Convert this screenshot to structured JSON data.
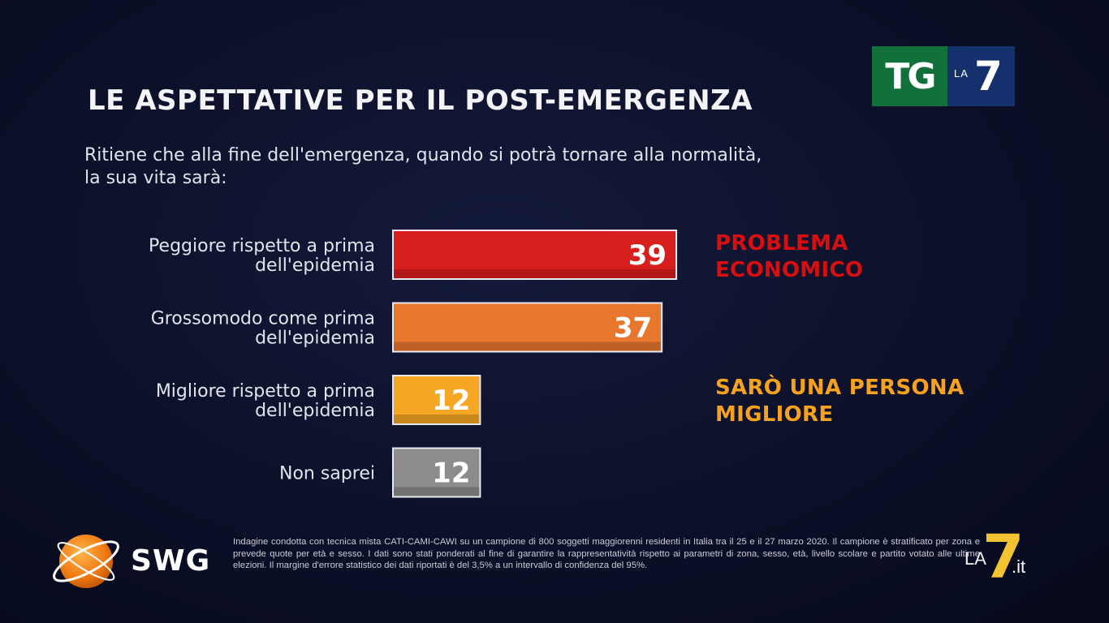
{
  "title": "LE ASPETTATIVE PER IL POST-EMERGENZA",
  "question": {
    "line1": "Ritiene che alla fine dell'emergenza, quando si potrà tornare alla normalità,",
    "line2": "la sua vita sarà:"
  },
  "chart_data": {
    "type": "bar",
    "orientation": "horizontal",
    "categories": [
      [
        "Peggiore rispetto a prima",
        "dell'epidemia"
      ],
      [
        "Grossomodo come prima",
        "dell'epidemia"
      ],
      [
        "Migliore rispetto a prima",
        "dell'epidemia"
      ],
      [
        "Non saprei"
      ]
    ],
    "values": [
      39,
      37,
      12,
      12
    ],
    "colors": [
      "#d81f1e",
      "#e8772e",
      "#f5a623",
      "#8c8c8c"
    ],
    "xlim": [
      0,
      39
    ],
    "grid": false
  },
  "annotations": {
    "problem_line1": "PROBLEMA",
    "problem_line2": "ECONOMICO",
    "better_line1": "SARÒ UNA PERSONA",
    "better_line2": "MIGLIORE"
  },
  "logos": {
    "tg_left": "TG",
    "tg_la": "LA",
    "tg_seven": "7",
    "swg": "SWG",
    "corner_la": "LA",
    "corner_seven": "7",
    "corner_it": ".it"
  },
  "footnote": "Indagine condotta con tecnica mista CATI-CAMI-CAWI su un campione di 800 soggetti maggiorenni residenti in Italia tra il 25 e il 27 marzo 2020. Il campione è stratificato per zona e prevede quote per età e sesso. I dati sono stati ponderati al fine di garantire la rappresentatività rispetto ai parametri di zona, sesso, età, livello scolare e partito votato alle ultime elezioni. Il margine d'errore statistico dei dati riportati è del 3,5% a un intervallo di confidenza del 95%."
}
